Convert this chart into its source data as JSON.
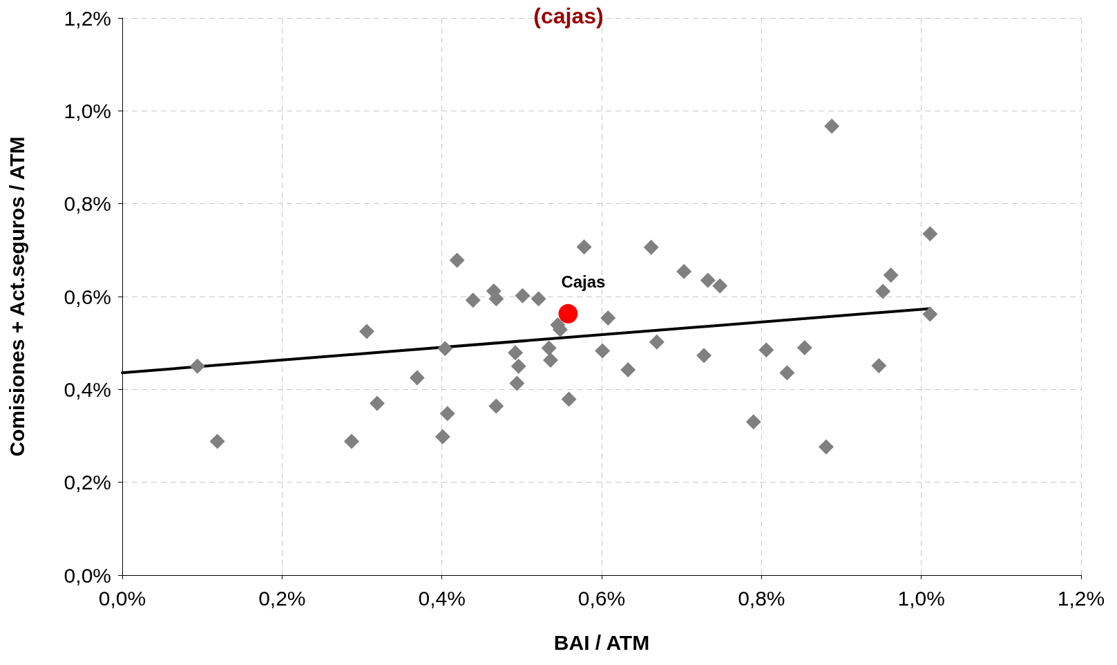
{
  "chart_data": {
    "type": "scatter",
    "title": "(cajas)",
    "xlabel": "BAI / ATM",
    "ylabel": "Comisiones + Act.seguros / ATM",
    "xlim": [
      0,
      1.2
    ],
    "ylim": [
      0,
      1.2
    ],
    "xticks": [
      {
        "value": 0,
        "label": "0,0%"
      },
      {
        "value": 0.2,
        "label": "0,2%"
      },
      {
        "value": 0.4,
        "label": "0,4%"
      },
      {
        "value": 0.6,
        "label": "0,6%"
      },
      {
        "value": 0.8,
        "label": "0,8%"
      },
      {
        "value": 1.0,
        "label": "1,0%"
      },
      {
        "value": 1.2,
        "label": "1,2%"
      }
    ],
    "yticks": [
      {
        "value": 0,
        "label": "0,0%"
      },
      {
        "value": 0.2,
        "label": "0,2%"
      },
      {
        "value": 0.4,
        "label": "0,4%"
      },
      {
        "value": 0.6,
        "label": "0,6%"
      },
      {
        "value": 0.8,
        "label": "0,8%"
      },
      {
        "value": 1.0,
        "label": "1,0%"
      },
      {
        "value": 1.2,
        "label": "1,2%"
      }
    ],
    "grid": true,
    "legend": false,
    "series": [
      {
        "color": "#808080",
        "marker": "diamond",
        "x": [
          0.094,
          0.119,
          0.287,
          0.306,
          0.319,
          0.369,
          0.401,
          0.404,
          0.407,
          0.419,
          0.439,
          0.465,
          0.468,
          0.468,
          0.501,
          0.521,
          0.492,
          0.496,
          0.494,
          0.534,
          0.536,
          0.545,
          0.548,
          0.559,
          0.578,
          0.601,
          0.608,
          0.633,
          0.662,
          0.669,
          0.703,
          0.733,
          0.748,
          0.728,
          0.79,
          0.806,
          0.832,
          0.854,
          0.881,
          0.888,
          0.947,
          0.952,
          0.962,
          1.011,
          1.011
        ],
        "values": [
          0.45,
          0.288,
          0.288,
          0.525,
          0.37,
          0.425,
          0.298,
          0.488,
          0.348,
          0.678,
          0.592,
          0.612,
          0.595,
          0.364,
          0.602,
          0.595,
          0.479,
          0.45,
          0.413,
          0.489,
          0.463,
          0.539,
          0.529,
          0.379,
          0.707,
          0.483,
          0.554,
          0.442,
          0.706,
          0.502,
          0.654,
          0.635,
          0.623,
          0.473,
          0.33,
          0.485,
          0.436,
          0.49,
          0.276,
          0.967,
          0.451,
          0.611,
          0.646,
          0.735,
          0.562
        ]
      },
      {
        "name": "Cajas",
        "color": "#ff0000",
        "marker": "circle",
        "x": [
          0.558
        ],
        "values": [
          0.563
        ]
      },
      {
        "type": "line",
        "color": "#000000",
        "marker": "none",
        "line_style": "solid",
        "x": [
          0,
          1.011
        ],
        "values": [
          0.436,
          0.574
        ]
      }
    ]
  }
}
